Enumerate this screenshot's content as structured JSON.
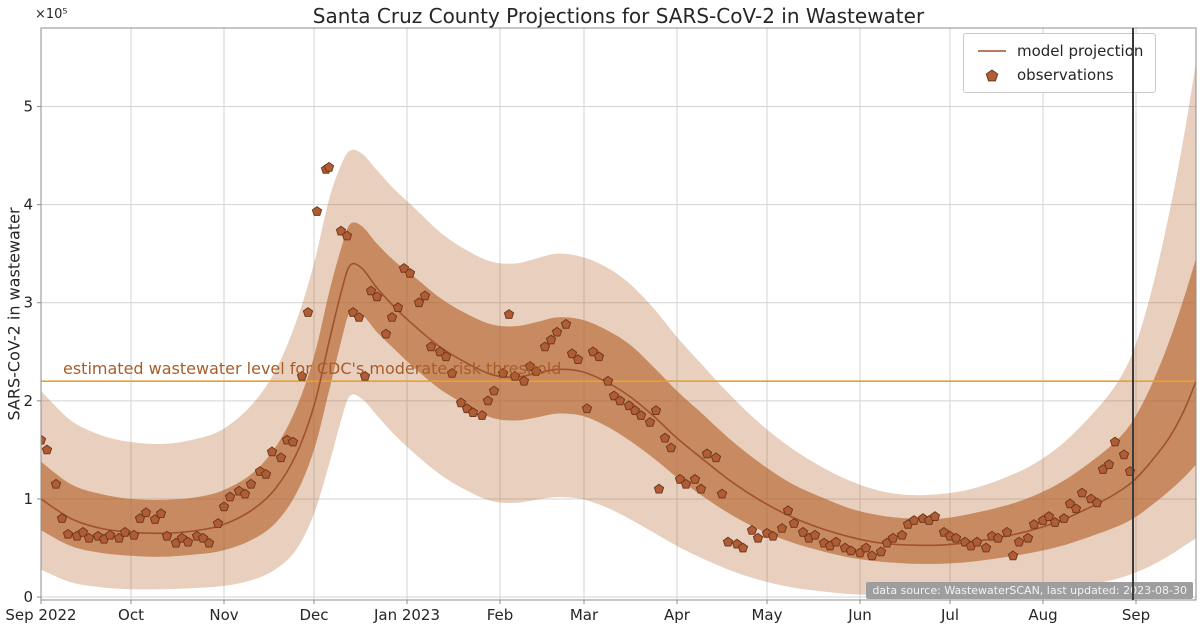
{
  "chart_data": {
    "type": "line",
    "title": "Santa Cruz County Projections for SARS-CoV-2 in Wastewater",
    "ylabel": "SARS-CoV-2 in wastewater",
    "y_scale_note": "×10⁵",
    "xlim_days": [
      0,
      385
    ],
    "ylim": [
      -0.03,
      5.8
    ],
    "grid": true,
    "x_ticks": [
      {
        "day": 0,
        "label": "Sep 2022"
      },
      {
        "day": 30,
        "label": "Oct"
      },
      {
        "day": 61,
        "label": "Nov"
      },
      {
        "day": 91,
        "label": "Dec"
      },
      {
        "day": 122,
        "label": "Jan 2023"
      },
      {
        "day": 153,
        "label": "Feb"
      },
      {
        "day": 181,
        "label": "Mar"
      },
      {
        "day": 212,
        "label": "Apr"
      },
      {
        "day": 242,
        "label": "May"
      },
      {
        "day": 273,
        "label": "Jun"
      },
      {
        "day": 303,
        "label": "Jul"
      },
      {
        "day": 334,
        "label": "Aug"
      },
      {
        "day": 365,
        "label": "Sep"
      }
    ],
    "y_ticks": [
      0,
      1,
      2,
      3,
      4,
      5
    ],
    "legend": {
      "position": "upper right",
      "entries": [
        {
          "label": "model projection",
          "type": "line"
        },
        {
          "label": "observations",
          "type": "pentagon"
        }
      ]
    },
    "threshold": {
      "value": 2.2,
      "label": "estimated wastewater level for CDC's moderate risk threshold"
    },
    "last_updated_line_day": 364,
    "projection": {
      "days": [
        0,
        10,
        20,
        30,
        40,
        50,
        60,
        70,
        78,
        85,
        91,
        96,
        100,
        103,
        107,
        112,
        118,
        125,
        133,
        141,
        150,
        158,
        165,
        172,
        180,
        188,
        196,
        204,
        212,
        220,
        230,
        240,
        250,
        260,
        270,
        280,
        290,
        300,
        310,
        320,
        330,
        340,
        350,
        358,
        364,
        370,
        376,
        381,
        385
      ],
      "mean": [
        1.0,
        0.8,
        0.7,
        0.66,
        0.65,
        0.67,
        0.73,
        0.88,
        1.1,
        1.45,
        1.95,
        2.6,
        3.1,
        3.38,
        3.35,
        3.15,
        2.95,
        2.75,
        2.55,
        2.4,
        2.27,
        2.24,
        2.28,
        2.32,
        2.3,
        2.2,
        2.05,
        1.85,
        1.62,
        1.42,
        1.18,
        0.98,
        0.82,
        0.7,
        0.61,
        0.55,
        0.53,
        0.53,
        0.56,
        0.61,
        0.68,
        0.78,
        0.92,
        1.05,
        1.18,
        1.38,
        1.62,
        1.9,
        2.2
      ],
      "inner_band_hi": [
        1.38,
        1.15,
        1.05,
        1.0,
        0.99,
        1.01,
        1.08,
        1.25,
        1.52,
        1.92,
        2.45,
        3.1,
        3.55,
        3.8,
        3.78,
        3.6,
        3.42,
        3.25,
        3.05,
        2.9,
        2.78,
        2.76,
        2.8,
        2.85,
        2.83,
        2.73,
        2.58,
        2.35,
        2.1,
        1.88,
        1.6,
        1.36,
        1.16,
        1.02,
        0.9,
        0.83,
        0.8,
        0.8,
        0.85,
        0.92,
        1.02,
        1.17,
        1.38,
        1.58,
        1.8,
        2.15,
        2.6,
        3.05,
        3.45
      ],
      "inner_band_lo": [
        0.68,
        0.52,
        0.45,
        0.42,
        0.41,
        0.43,
        0.47,
        0.58,
        0.75,
        1.05,
        1.5,
        2.1,
        2.6,
        2.9,
        2.88,
        2.7,
        2.52,
        2.32,
        2.12,
        1.97,
        1.83,
        1.8,
        1.83,
        1.87,
        1.85,
        1.75,
        1.6,
        1.42,
        1.22,
        1.04,
        0.84,
        0.68,
        0.56,
        0.47,
        0.4,
        0.36,
        0.34,
        0.34,
        0.36,
        0.4,
        0.45,
        0.52,
        0.62,
        0.71,
        0.8,
        0.93,
        1.08,
        1.22,
        1.35
      ],
      "outer_band_hi": [
        2.1,
        1.8,
        1.65,
        1.58,
        1.56,
        1.6,
        1.7,
        1.95,
        2.3,
        2.8,
        3.4,
        4.05,
        4.4,
        4.55,
        4.52,
        4.35,
        4.15,
        3.95,
        3.72,
        3.55,
        3.42,
        3.4,
        3.45,
        3.5,
        3.47,
        3.37,
        3.2,
        2.95,
        2.65,
        2.38,
        2.05,
        1.76,
        1.52,
        1.33,
        1.18,
        1.08,
        1.04,
        1.05,
        1.1,
        1.2,
        1.34,
        1.55,
        1.85,
        2.15,
        2.5,
        3.1,
        3.9,
        4.7,
        5.45
      ],
      "outer_band_lo": [
        0.28,
        0.15,
        0.1,
        0.08,
        0.08,
        0.09,
        0.11,
        0.17,
        0.28,
        0.48,
        0.85,
        1.35,
        1.8,
        2.05,
        2.02,
        1.85,
        1.65,
        1.45,
        1.25,
        1.1,
        0.98,
        0.96,
        0.99,
        1.02,
        1.0,
        0.92,
        0.8,
        0.66,
        0.52,
        0.4,
        0.27,
        0.17,
        0.1,
        0.06,
        0.03,
        0.02,
        0.01,
        0.01,
        0.02,
        0.03,
        0.05,
        0.08,
        0.13,
        0.18,
        0.24,
        0.32,
        0.42,
        0.52,
        0.6
      ]
    },
    "observations_day_value": [
      [
        0,
        1.6
      ],
      [
        2,
        1.5
      ],
      [
        5,
        1.15
      ],
      [
        7,
        0.8
      ],
      [
        9,
        0.64
      ],
      [
        12,
        0.62
      ],
      [
        14,
        0.66
      ],
      [
        16,
        0.6
      ],
      [
        19,
        0.62
      ],
      [
        21,
        0.59
      ],
      [
        23,
        0.63
      ],
      [
        26,
        0.6
      ],
      [
        28,
        0.66
      ],
      [
        31,
        0.63
      ],
      [
        33,
        0.8
      ],
      [
        35,
        0.86
      ],
      [
        38,
        0.79
      ],
      [
        40,
        0.85
      ],
      [
        42,
        0.62
      ],
      [
        45,
        0.55
      ],
      [
        47,
        0.6
      ],
      [
        49,
        0.56
      ],
      [
        52,
        0.62
      ],
      [
        54,
        0.6
      ],
      [
        56,
        0.55
      ],
      [
        59,
        0.75
      ],
      [
        61,
        0.92
      ],
      [
        63,
        1.02
      ],
      [
        66,
        1.08
      ],
      [
        68,
        1.05
      ],
      [
        70,
        1.15
      ],
      [
        73,
        1.28
      ],
      [
        75,
        1.25
      ],
      [
        77,
        1.48
      ],
      [
        80,
        1.42
      ],
      [
        82,
        1.6
      ],
      [
        84,
        1.58
      ],
      [
        87,
        2.25
      ],
      [
        89,
        2.9
      ],
      [
        92,
        3.93
      ],
      [
        95,
        4.36
      ],
      [
        96,
        4.38
      ],
      [
        100,
        3.73
      ],
      [
        102,
        3.68
      ],
      [
        104,
        2.9
      ],
      [
        106,
        2.85
      ],
      [
        108,
        2.25
      ],
      [
        110,
        3.12
      ],
      [
        112,
        3.06
      ],
      [
        115,
        2.68
      ],
      [
        117,
        2.85
      ],
      [
        119,
        2.95
      ],
      [
        121,
        3.35
      ],
      [
        123,
        3.3
      ],
      [
        126,
        3.0
      ],
      [
        128,
        3.07
      ],
      [
        130,
        2.55
      ],
      [
        133,
        2.5
      ],
      [
        135,
        2.45
      ],
      [
        137,
        2.28
      ],
      [
        140,
        1.98
      ],
      [
        142,
        1.92
      ],
      [
        144,
        1.88
      ],
      [
        147,
        1.85
      ],
      [
        149,
        2.0
      ],
      [
        151,
        2.1
      ],
      [
        154,
        2.28
      ],
      [
        156,
        2.88
      ],
      [
        158,
        2.25
      ],
      [
        161,
        2.2
      ],
      [
        163,
        2.35
      ],
      [
        165,
        2.3
      ],
      [
        168,
        2.55
      ],
      [
        170,
        2.62
      ],
      [
        172,
        2.7
      ],
      [
        175,
        2.78
      ],
      [
        177,
        2.48
      ],
      [
        179,
        2.42
      ],
      [
        182,
        1.92
      ],
      [
        184,
        2.5
      ],
      [
        186,
        2.45
      ],
      [
        189,
        2.2
      ],
      [
        191,
        2.05
      ],
      [
        193,
        2.0
      ],
      [
        196,
        1.95
      ],
      [
        198,
        1.9
      ],
      [
        200,
        1.85
      ],
      [
        203,
        1.78
      ],
      [
        205,
        1.9
      ],
      [
        206,
        1.1
      ],
      [
        208,
        1.62
      ],
      [
        210,
        1.52
      ],
      [
        213,
        1.2
      ],
      [
        215,
        1.15
      ],
      [
        218,
        1.2
      ],
      [
        220,
        1.1
      ],
      [
        222,
        1.46
      ],
      [
        225,
        1.42
      ],
      [
        227,
        1.05
      ],
      [
        229,
        0.56
      ],
      [
        232,
        0.54
      ],
      [
        234,
        0.5
      ],
      [
        237,
        0.68
      ],
      [
        239,
        0.6
      ],
      [
        242,
        0.65
      ],
      [
        244,
        0.62
      ],
      [
        247,
        0.7
      ],
      [
        249,
        0.88
      ],
      [
        251,
        0.75
      ],
      [
        254,
        0.66
      ],
      [
        256,
        0.6
      ],
      [
        258,
        0.63
      ],
      [
        261,
        0.55
      ],
      [
        263,
        0.52
      ],
      [
        265,
        0.56
      ],
      [
        268,
        0.5
      ],
      [
        270,
        0.47
      ],
      [
        273,
        0.45
      ],
      [
        275,
        0.5
      ],
      [
        277,
        0.42
      ],
      [
        280,
        0.46
      ],
      [
        282,
        0.55
      ],
      [
        284,
        0.6
      ],
      [
        287,
        0.63
      ],
      [
        289,
        0.74
      ],
      [
        291,
        0.78
      ],
      [
        294,
        0.8
      ],
      [
        296,
        0.78
      ],
      [
        298,
        0.82
      ],
      [
        301,
        0.66
      ],
      [
        303,
        0.62
      ],
      [
        305,
        0.6
      ],
      [
        308,
        0.56
      ],
      [
        310,
        0.52
      ],
      [
        312,
        0.56
      ],
      [
        315,
        0.5
      ],
      [
        317,
        0.62
      ],
      [
        319,
        0.6
      ],
      [
        322,
        0.66
      ],
      [
        324,
        0.42
      ],
      [
        326,
        0.56
      ],
      [
        329,
        0.6
      ],
      [
        331,
        0.74
      ],
      [
        334,
        0.78
      ],
      [
        336,
        0.82
      ],
      [
        338,
        0.76
      ],
      [
        341,
        0.8
      ],
      [
        343,
        0.95
      ],
      [
        345,
        0.9
      ],
      [
        347,
        1.06
      ],
      [
        350,
        1.0
      ],
      [
        352,
        0.96
      ],
      [
        354,
        1.3
      ],
      [
        356,
        1.35
      ],
      [
        358,
        1.58
      ],
      [
        361,
        1.45
      ],
      [
        363,
        1.28
      ]
    ],
    "source_note": "data source: WastewaterSCAN, last updated: 2023-08-30"
  },
  "colors": {
    "model_line": "#a0522d",
    "band_base": "#b45f28",
    "marker_face": "#b05c34",
    "marker_edge": "#713a1e",
    "threshold_line": "#e8a02e",
    "threshold_text": "#a85d28",
    "last_updated_line": "#3a3a3a",
    "grid": "#d3d3d3",
    "spine": "#8c8c8c",
    "text": "#262626",
    "source_bg": "#9e9e9e",
    "source_text": "#f2f2f2"
  }
}
